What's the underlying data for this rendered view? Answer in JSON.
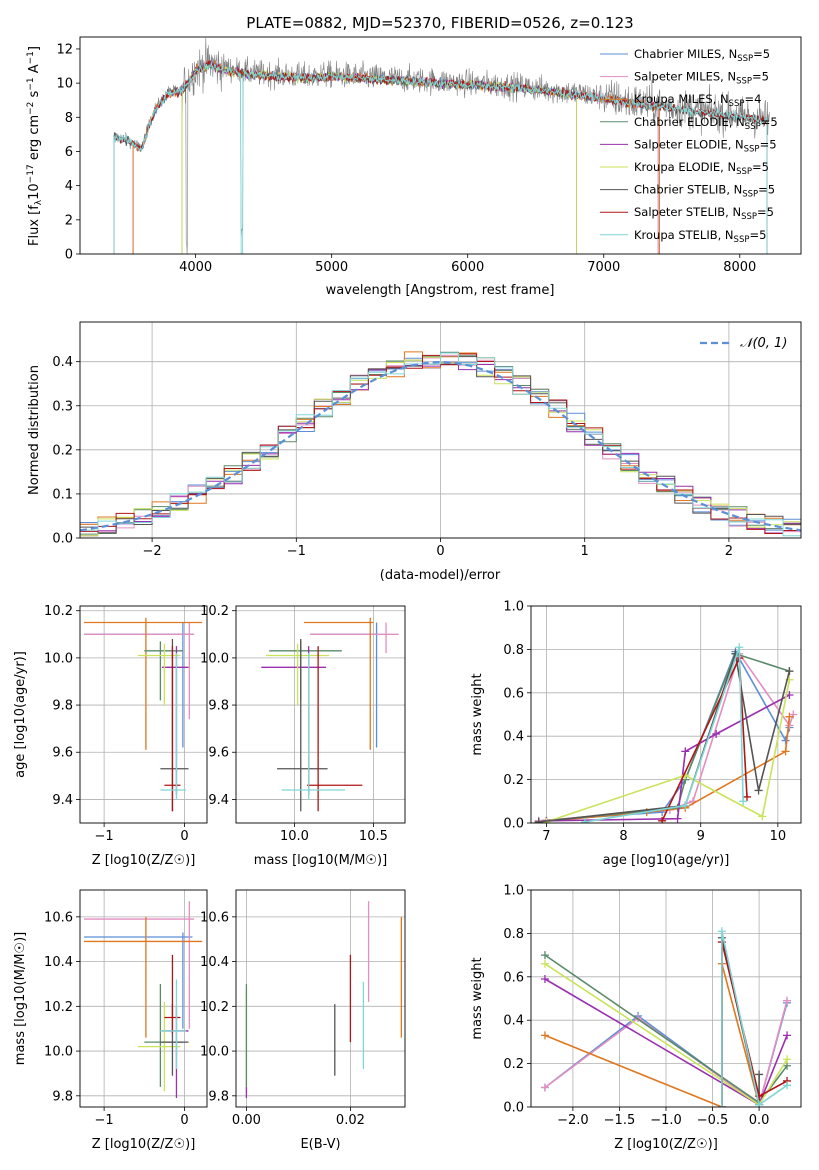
{
  "figure": {
    "title": "PLATE=0882, MJD=52370, FIBERID=0526, z=0.123"
  },
  "colors": {
    "Chabrier MILES": "#5b8fd8",
    "Salpeter MILES": "#e38ec1",
    "Kroupa MILES": "#e0761e",
    "Chabrier ELODIE": "#5a8a6a",
    "Salpeter ELODIE": "#9b2fb0",
    "Kroupa ELODIE": "#c9e35a",
    "Chabrier STELIB": "#555555",
    "Salpeter STELIB": "#b01515",
    "Kroupa STELIB": "#7fd6d6",
    "data": "#808080",
    "normal": "#5b8fd8"
  },
  "legend_spectrum": [
    {
      "key": "Chabrier MILES",
      "text": "Chabrier MILES, N",
      "sub": "SSP",
      "post": "=5"
    },
    {
      "key": "Salpeter MILES",
      "text": "Salpeter MILES, N",
      "sub": "SSP",
      "post": "=5"
    },
    {
      "key": "Kroupa MILES",
      "text": "Kroupa MILES, N",
      "sub": "SSP",
      "post": "=4"
    },
    {
      "key": "Chabrier ELODIE",
      "text": "Chabrier ELODIE, N",
      "sub": "SSP",
      "post": "=5"
    },
    {
      "key": "Salpeter ELODIE",
      "text": "Salpeter ELODIE, N",
      "sub": "SSP",
      "post": "=5"
    },
    {
      "key": "Kroupa ELODIE",
      "text": "Kroupa ELODIE, N",
      "sub": "SSP",
      "post": "=5"
    },
    {
      "key": "Chabrier STELIB",
      "text": "Chabrier STELIB, N",
      "sub": "SSP",
      "post": "=5"
    },
    {
      "key": "Salpeter STELIB",
      "text": "Salpeter STELIB, N",
      "sub": "SSP",
      "post": "=5"
    },
    {
      "key": "Kroupa STELIB",
      "text": "Kroupa STELIB, N",
      "sub": "SSP",
      "post": "=5"
    }
  ],
  "legend_hist": "𝒩(0, 1)",
  "chart_data": [
    {
      "id": "spectrum",
      "type": "line",
      "xlabel": "wavelength [Angstrom, rest frame]",
      "ylabel": "Flux [f_λ 10^-17 erg cm^-2 s^-1 A^-1]",
      "xlim": [
        3150,
        8450
      ],
      "ylim": [
        0,
        12.7
      ],
      "xticks": [
        4000,
        5000,
        6000,
        7000,
        8000
      ],
      "yticks": [
        0,
        2,
        4,
        6,
        8,
        10,
        12
      ],
      "grid": false,
      "legend_position": "right",
      "data_envelope": {
        "x": [
          3400,
          3500,
          3600,
          3700,
          3800,
          3900,
          4000,
          4100,
          4200,
          4400,
          4600,
          4800,
          5000,
          5200,
          5400,
          5600,
          5800,
          6000,
          6200,
          6400,
          6600,
          6800,
          7000,
          7200,
          7400,
          7600,
          7800,
          8000,
          8200
        ],
        "y": [
          6.9,
          6.7,
          6.2,
          8.5,
          9.5,
          9.6,
          10.8,
          11.2,
          10.9,
          10.6,
          10.5,
          10.4,
          10.5,
          10.4,
          10.3,
          10.2,
          10.1,
          10.0,
          9.9,
          9.8,
          9.6,
          9.4,
          9.2,
          8.9,
          8.7,
          8.5,
          8.3,
          8.1,
          7.9
        ]
      }
    },
    {
      "id": "residual_hist",
      "type": "bar",
      "xlabel": "(data-model)/error",
      "ylabel": "Normed distribution",
      "xlim": [
        -2.5,
        2.5
      ],
      "ylim": [
        0,
        0.49
      ],
      "xticks": [
        -2,
        -1,
        0,
        1,
        2
      ],
      "yticks": [
        0.0,
        0.1,
        0.2,
        0.3,
        0.4
      ],
      "grid": true,
      "legend_position": "top-right"
    },
    {
      "id": "age_vs_Z",
      "type": "scatter",
      "xlabel": "Z [log10(Z/Z☉)]",
      "ylabel": "age [log10(age/yr)]",
      "xlim": [
        -1.3,
        0.28
      ],
      "ylim": [
        9.3,
        10.22
      ],
      "xticks": [
        -1,
        0
      ],
      "yticks": [
        9.4,
        9.6,
        9.8,
        10.0,
        10.2
      ],
      "grid": true,
      "points": [
        {
          "s": "Chabrier MILES",
          "x": -0.02,
          "y": 10.1,
          "xlo": -1.25,
          "xhi": 0.1,
          "ylo": 9.62,
          "yhi": 10.15
        },
        {
          "s": "Salpeter MILES",
          "x": 0.06,
          "y": 10.1,
          "xlo": -1.25,
          "xhi": 0.12,
          "ylo": 9.74,
          "yhi": 10.15
        },
        {
          "s": "Kroupa MILES",
          "x": -0.48,
          "y": 10.15,
          "xlo": -1.25,
          "xhi": 0.22,
          "ylo": 9.61,
          "yhi": 10.17
        },
        {
          "s": "Chabrier ELODIE",
          "x": -0.3,
          "y": 10.03,
          "xlo": -0.5,
          "xhi": -0.02,
          "ylo": 9.82,
          "yhi": 10.07
        },
        {
          "s": "Salpeter ELODIE",
          "x": -0.1,
          "y": 9.96,
          "xlo": -0.28,
          "xhi": 0.05,
          "ylo": 9.42,
          "yhi": 10.05
        },
        {
          "s": "Kroupa ELODIE",
          "x": -0.25,
          "y": 10.01,
          "xlo": -0.58,
          "xhi": -0.05,
          "ylo": 9.8,
          "yhi": 10.06
        },
        {
          "s": "Chabrier STELIB",
          "x": -0.15,
          "y": 9.53,
          "xlo": -0.3,
          "xhi": 0.05,
          "ylo": 9.35,
          "yhi": 10.08
        },
        {
          "s": "Salpeter STELIB",
          "x": -0.15,
          "y": 9.46,
          "xlo": -0.25,
          "xhi": -0.05,
          "ylo": 9.35,
          "yhi": 10.05
        },
        {
          "s": "Kroupa STELIB",
          "x": -0.1,
          "y": 9.44,
          "xlo": -0.3,
          "xhi": 0.02,
          "ylo": 9.4,
          "yhi": 10.02
        }
      ]
    },
    {
      "id": "age_vs_mass",
      "type": "scatter",
      "xlabel": "mass [log10(M/M☉)]",
      "ylabel": "",
      "xlim": [
        9.63,
        10.7
      ],
      "ylim": [
        9.3,
        10.22
      ],
      "xticks": [
        10.0,
        10.5
      ],
      "yticks": [
        9.4,
        9.6,
        9.8,
        10.0,
        10.2
      ],
      "grid": true,
      "points": [
        {
          "s": "Chabrier MILES",
          "x": 10.52,
          "y": 10.1,
          "xlo": 10.1,
          "xhi": 10.53,
          "ylo": 9.62,
          "yhi": 10.15
        },
        {
          "s": "Salpeter MILES",
          "x": 10.58,
          "y": 10.1,
          "xlo": 10.1,
          "xhi": 10.66,
          "ylo": 10.02,
          "yhi": 10.15
        },
        {
          "s": "Kroupa MILES",
          "x": 10.48,
          "y": 10.15,
          "xlo": 10.06,
          "xhi": 10.5,
          "ylo": 9.61,
          "yhi": 10.17
        },
        {
          "s": "Chabrier ELODIE",
          "x": 10.04,
          "y": 10.03,
          "xlo": 9.84,
          "xhi": 10.3,
          "ylo": 9.82,
          "yhi": 10.07
        },
        {
          "s": "Salpeter ELODIE",
          "x": 10.09,
          "y": 9.96,
          "xlo": 9.79,
          "xhi": 10.2,
          "ylo": 9.42,
          "yhi": 10.05
        },
        {
          "s": "Kroupa ELODIE",
          "x": 10.02,
          "y": 10.01,
          "xlo": 9.82,
          "xhi": 10.22,
          "ylo": 9.8,
          "yhi": 10.06
        },
        {
          "s": "Chabrier STELIB",
          "x": 10.04,
          "y": 9.53,
          "xlo": 9.89,
          "xhi": 10.21,
          "ylo": 9.35,
          "yhi": 10.08
        },
        {
          "s": "Salpeter STELIB",
          "x": 10.15,
          "y": 9.46,
          "xlo": 10.08,
          "xhi": 10.43,
          "ylo": 9.35,
          "yhi": 10.05
        },
        {
          "s": "Kroupa STELIB",
          "x": 10.09,
          "y": 9.44,
          "xlo": 9.92,
          "xhi": 10.32,
          "ylo": 9.4,
          "yhi": 10.02
        }
      ]
    },
    {
      "id": "weight_vs_age",
      "type": "line",
      "xlabel": "age [log10(age/yr)]",
      "ylabel": "mass weight",
      "xlim": [
        6.8,
        10.3
      ],
      "ylim": [
        0,
        1.0
      ],
      "xticks": [
        7,
        8,
        9,
        10
      ],
      "yticks": [
        0.0,
        0.2,
        0.4,
        0.6,
        0.8,
        1.0
      ],
      "grid": true,
      "series": [
        {
          "s": "Chabrier MILES",
          "x": [
            6.9,
            8.5,
            8.8,
            9.45,
            10.1,
            10.15
          ],
          "y": [
            0.01,
            0.05,
            0.2,
            0.79,
            0.38,
            0.44
          ]
        },
        {
          "s": "Salpeter MILES",
          "x": [
            6.9,
            8.6,
            8.9,
            9.5,
            10.15,
            10.2
          ],
          "y": [
            0.01,
            0.06,
            0.1,
            0.78,
            0.45,
            0.5
          ]
        },
        {
          "s": "Kroupa MILES",
          "x": [
            6.9,
            8.3,
            8.8,
            10.1,
            10.15
          ],
          "y": [
            0.005,
            0.05,
            0.07,
            0.33,
            0.49
          ]
        },
        {
          "s": "Chabrier ELODIE",
          "x": [
            7.0,
            8.7,
            8.8,
            9.45,
            10.15
          ],
          "y": [
            0.01,
            0.07,
            0.2,
            0.78,
            0.7
          ]
        },
        {
          "s": "Salpeter ELODIE",
          "x": [
            7.0,
            8.7,
            8.8,
            9.2,
            10.15
          ],
          "y": [
            0.01,
            0.02,
            0.33,
            0.41,
            0.59
          ]
        },
        {
          "s": "Kroupa ELODIE",
          "x": [
            7.0,
            8.8,
            9.8,
            10.15
          ],
          "y": [
            0.005,
            0.22,
            0.03,
            0.66
          ]
        },
        {
          "s": "Chabrier STELIB",
          "x": [
            6.9,
            8.8,
            9.45,
            9.75,
            10.15
          ],
          "y": [
            0.005,
            0.08,
            0.78,
            0.15,
            0.7
          ]
        },
        {
          "s": "Salpeter STELIB",
          "x": [
            8.5,
            9.5,
            9.6
          ],
          "y": [
            0.01,
            0.76,
            0.12
          ]
        },
        {
          "s": "Kroupa STELIB",
          "x": [
            7.5,
            8.8,
            9.5,
            9.55
          ],
          "y": [
            0.005,
            0.08,
            0.81,
            0.1
          ]
        }
      ]
    },
    {
      "id": "mass_vs_Z",
      "type": "scatter",
      "xlabel": "Z [log10(Z/Z☉)]",
      "ylabel": "mass [log10(M/M☉)]",
      "xlim": [
        -1.3,
        0.28
      ],
      "ylim": [
        9.75,
        10.72
      ],
      "xticks": [
        -1,
        0
      ],
      "yticks": [
        9.8,
        10.0,
        10.2,
        10.4,
        10.6
      ],
      "grid": true,
      "points": [
        {
          "s": "Chabrier MILES",
          "x": -0.02,
          "y": 10.51,
          "xlo": -1.25,
          "xhi": 0.1,
          "ylo": 10.1,
          "yhi": 10.53
        },
        {
          "s": "Salpeter MILES",
          "x": 0.06,
          "y": 10.59,
          "xlo": -1.25,
          "xhi": 0.12,
          "ylo": 10.1,
          "yhi": 10.67
        },
        {
          "s": "Kroupa MILES",
          "x": -0.48,
          "y": 10.49,
          "xlo": -1.25,
          "xhi": 0.22,
          "ylo": 10.06,
          "yhi": 10.6
        },
        {
          "s": "Chabrier ELODIE",
          "x": -0.3,
          "y": 10.04,
          "xlo": -0.5,
          "xhi": -0.02,
          "ylo": 9.84,
          "yhi": 10.3
        },
        {
          "s": "Salpeter ELODIE",
          "x": -0.1,
          "y": 10.09,
          "xlo": -0.28,
          "xhi": 0.05,
          "ylo": 9.79,
          "yhi": 10.2
        },
        {
          "s": "Kroupa ELODIE",
          "x": -0.25,
          "y": 10.02,
          "xlo": -0.58,
          "xhi": -0.05,
          "ylo": 9.82,
          "yhi": 10.22
        },
        {
          "s": "Chabrier STELIB",
          "x": -0.15,
          "y": 10.04,
          "xlo": -0.3,
          "xhi": 0.05,
          "ylo": 9.89,
          "yhi": 10.21
        },
        {
          "s": "Salpeter STELIB",
          "x": -0.15,
          "y": 10.15,
          "xlo": -0.25,
          "xhi": -0.05,
          "ylo": 10.08,
          "yhi": 10.43
        },
        {
          "s": "Kroupa STELIB",
          "x": -0.1,
          "y": 10.09,
          "xlo": -0.3,
          "xhi": 0.02,
          "ylo": 9.92,
          "yhi": 10.32
        }
      ]
    },
    {
      "id": "mass_vs_ebv",
      "type": "scatter",
      "xlabel": "E(B-V)",
      "ylabel": "",
      "xlim": [
        -0.002,
        0.0305
      ],
      "ylim": [
        9.75,
        10.72
      ],
      "xticks": [
        0.0,
        0.02
      ],
      "yticks": [
        9.8,
        10.0,
        10.2,
        10.4,
        10.6
      ],
      "grid": true,
      "points": [
        {
          "s": "Kroupa ELODIE",
          "x": 0.0,
          "y": 10.02,
          "ylo": 9.82,
          "yhi": 10.27
        },
        {
          "s": "Salpeter ELODIE",
          "x": 0.0,
          "y": 9.8,
          "ylo": 9.79,
          "yhi": 9.84
        },
        {
          "s": "Chabrier ELODIE",
          "x": 0.0,
          "y": 10.04,
          "ylo": 9.84,
          "yhi": 10.3
        },
        {
          "s": "Chabrier STELIB",
          "x": 0.017,
          "y": 10.04,
          "ylo": 9.89,
          "yhi": 10.21
        },
        {
          "s": "Salpeter STELIB",
          "x": 0.02,
          "y": 10.15,
          "ylo": 10.04,
          "yhi": 10.43
        },
        {
          "s": "Kroupa STELIB",
          "x": 0.0225,
          "y": 10.09,
          "ylo": 9.92,
          "yhi": 10.31
        },
        {
          "s": "Salpeter MILES",
          "x": 0.0235,
          "y": 10.59,
          "ylo": 10.22,
          "yhi": 10.67
        },
        {
          "s": "Kroupa MILES",
          "x": 0.0298,
          "y": 10.49,
          "ylo": 10.06,
          "yhi": 10.6
        }
      ]
    },
    {
      "id": "weight_vs_Z",
      "type": "line",
      "xlabel": "Z [log10(Z/Z☉)]",
      "ylabel": "mass weight",
      "xlim": [
        -2.45,
        0.45
      ],
      "ylim": [
        0,
        1.0
      ],
      "xticks": [
        -2.0,
        -1.5,
        -1.0,
        -0.5,
        0.0
      ],
      "yticks": [
        0.0,
        0.2,
        0.4,
        0.6,
        0.8,
        1.0
      ],
      "grid": true,
      "series": [
        {
          "s": "Chabrier MILES",
          "x": [
            -2.3,
            -1.3,
            0.0,
            0.3
          ],
          "y": [
            0.09,
            0.42,
            0.01,
            0.48
          ]
        },
        {
          "s": "Salpeter MILES",
          "x": [
            -2.3,
            -1.3,
            0.0,
            0.3
          ],
          "y": [
            0.09,
            0.41,
            0.01,
            0.49
          ]
        },
        {
          "s": "Kroupa MILES",
          "x": [
            -2.3,
            -0.4,
            -0.4,
            0.0
          ],
          "y": [
            0.33,
            0.0,
            0.66,
            0.01
          ]
        },
        {
          "s": "Chabrier ELODIE",
          "x": [
            -2.3,
            0.0,
            0.3
          ],
          "y": [
            0.7,
            0.02,
            0.19
          ]
        },
        {
          "s": "Salpeter ELODIE",
          "x": [
            -2.3,
            0.0,
            0.3
          ],
          "y": [
            0.59,
            0.01,
            0.33
          ]
        },
        {
          "s": "Kroupa ELODIE",
          "x": [
            -2.3,
            0.0,
            0.3
          ],
          "y": [
            0.66,
            0.01,
            0.22
          ]
        },
        {
          "s": "Chabrier STELIB",
          "x": [
            -0.4,
            -0.4,
            0.0,
            0.0
          ],
          "y": [
            0.0,
            0.78,
            0.01,
            0.15
          ]
        },
        {
          "s": "Salpeter STELIB",
          "x": [
            -0.4,
            -0.4,
            0.0,
            0.3
          ],
          "y": [
            0.0,
            0.76,
            0.05,
            0.12
          ]
        },
        {
          "s": "Kroupa STELIB",
          "x": [
            -0.4,
            -0.4,
            0.0,
            0.3
          ],
          "y": [
            0.0,
            0.81,
            0.01,
            0.1
          ]
        }
      ]
    }
  ]
}
